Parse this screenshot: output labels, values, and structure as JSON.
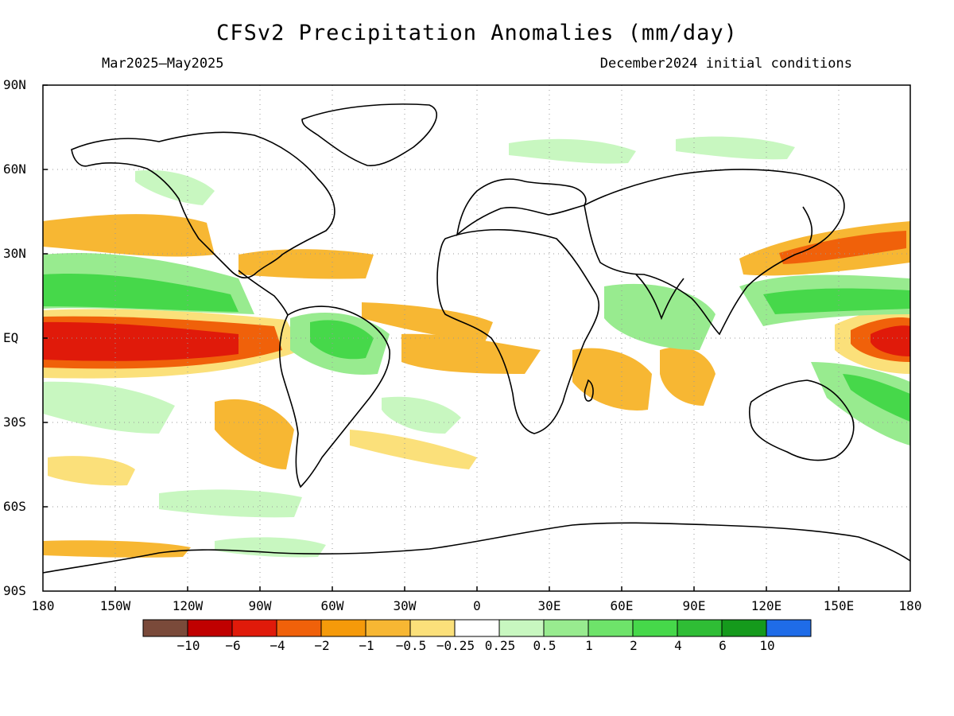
{
  "title": "CFSv2 Precipitation Anomalies (mm/day)",
  "subtitle_left": "Mar2025–May2025",
  "subtitle_right": "December2024 initial conditions",
  "lat_labels": [
    "90N",
    "60N",
    "30N",
    "EQ",
    "30S",
    "60S",
    "90S"
  ],
  "lon_labels": [
    "180",
    "150W",
    "120W",
    "90W",
    "60W",
    "30W",
    "0",
    "30E",
    "60E",
    "90E",
    "120E",
    "150E",
    "180"
  ],
  "colorbar": {
    "colors": [
      "#7a4a3a",
      "#c00000",
      "#e01a0a",
      "#f0610a",
      "#f59a0a",
      "#f7b733",
      "#fbe07a",
      "#ffffff",
      "#c8f7c0",
      "#98eb8f",
      "#6ee36a",
      "#46d84a",
      "#2fbd35",
      "#159a1c",
      "#1f6ce8"
    ],
    "labels": [
      "−10",
      "−6",
      "−4",
      "−2",
      "−1",
      "−0.5",
      "−0.25",
      "0.25",
      "0.5",
      "1",
      "2",
      "4",
      "6",
      "10"
    ]
  },
  "colors": {
    "neg_strong": "#e01a0a",
    "neg_mid": "#f0610a",
    "neg_light": "#f59a0a",
    "neg_weak": "#fbe07a",
    "pos_weak": "#c8f7c0",
    "pos_mid": "#98eb8f",
    "pos_strong": "#46d84a"
  }
}
